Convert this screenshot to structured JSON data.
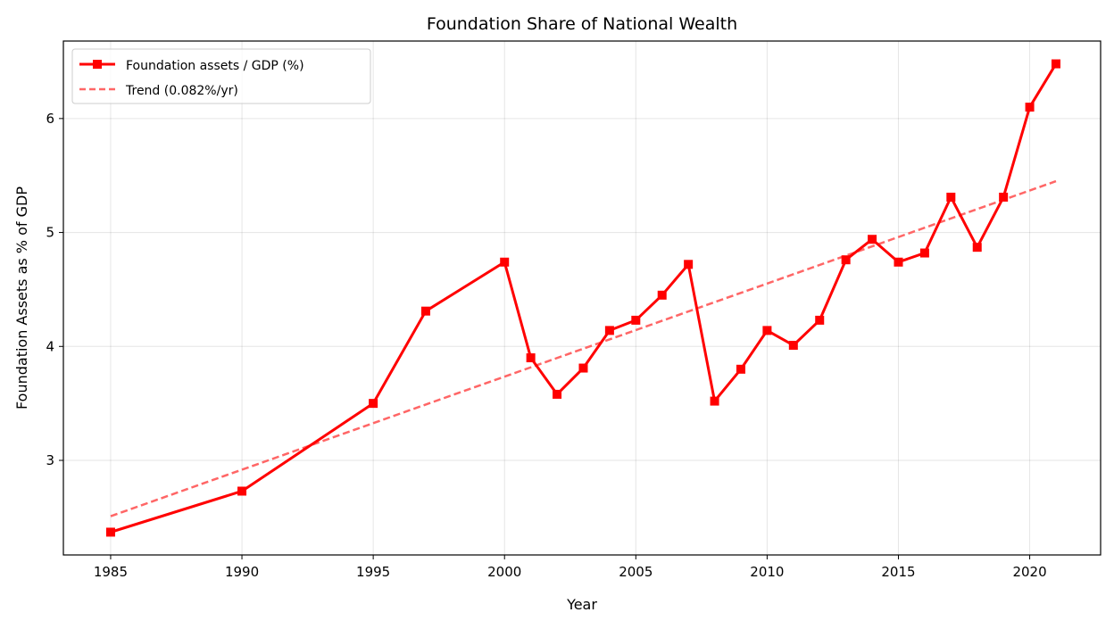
{
  "chart_data": {
    "type": "line",
    "title": "Foundation Share of National Wealth",
    "xlabel": "Year",
    "ylabel": "Foundation Assets as % of GDP",
    "xlim": [
      1983.2,
      2022.7
    ],
    "ylim": [
      2.17,
      6.68
    ],
    "xticks": [
      1985,
      1990,
      1995,
      2000,
      2005,
      2010,
      2015,
      2020
    ],
    "yticks": [
      3,
      4,
      5,
      6
    ],
    "grid": true,
    "legend_placement": "top-left",
    "series": [
      {
        "name": "Foundation assets / GDP (%)",
        "color": "#ff0000",
        "style": "solid",
        "marker": "square",
        "x": [
          1985,
          1990,
          1995,
          1997,
          2000,
          2001,
          2002,
          2003,
          2004,
          2005,
          2006,
          2007,
          2008,
          2009,
          2010,
          2011,
          2012,
          2013,
          2014,
          2015,
          2016,
          2017,
          2018,
          2019,
          2020,
          2021
        ],
        "y": [
          2.37,
          2.73,
          3.5,
          4.31,
          4.74,
          3.9,
          3.58,
          3.81,
          4.14,
          4.23,
          4.45,
          4.72,
          3.52,
          3.8,
          4.14,
          4.01,
          4.23,
          4.76,
          4.94,
          4.74,
          4.82,
          5.31,
          4.87,
          5.31,
          6.1,
          6.48
        ]
      },
      {
        "name": "Trend (0.082%/yr)",
        "color": "#ff6666",
        "style": "dashed",
        "x": [
          1985,
          2021
        ],
        "y": [
          2.51,
          5.45
        ]
      }
    ]
  }
}
